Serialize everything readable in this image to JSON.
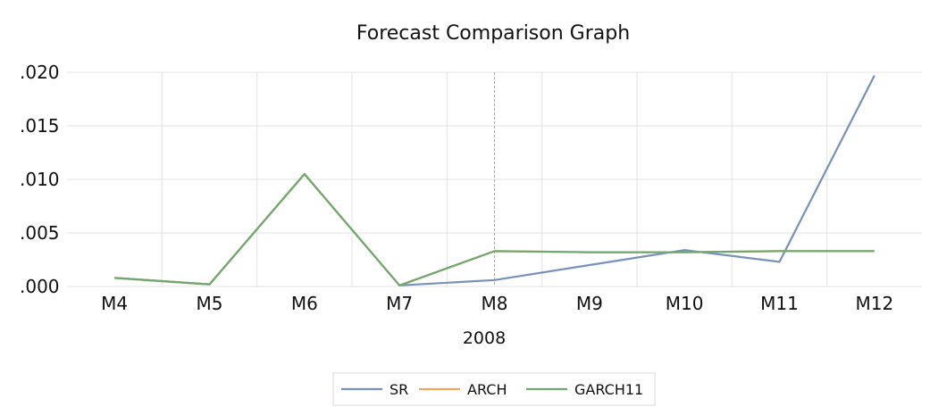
{
  "chart_data": {
    "type": "line",
    "title": "Forecast Comparison Graph",
    "xlabel": "2008",
    "ylabel": "",
    "categories": [
      "M4",
      "M5",
      "M6",
      "M7",
      "M8",
      "M9",
      "M10",
      "M11",
      "M12"
    ],
    "y_ticks": [
      ".000",
      ".005",
      ".010",
      ".015",
      ".020"
    ],
    "ylim": [
      0,
      0.02
    ],
    "grid": true,
    "legend_position": "bottom",
    "forecast_marker_category": "M8",
    "series": [
      {
        "name": "SR",
        "color": "#7891B8",
        "values": [
          0.0008,
          0.0002,
          0.0105,
          0.0001,
          0.0006,
          0.002,
          0.0034,
          0.0023,
          0.0197
        ]
      },
      {
        "name": "ARCH",
        "color": "#F2A85C",
        "values": [
          0.0008,
          0.0002,
          0.0105,
          0.0001,
          0.0033,
          0.0032,
          0.0032,
          0.0033,
          0.0033
        ]
      },
      {
        "name": "GARCH11",
        "color": "#70A870",
        "values": [
          0.0008,
          0.0002,
          0.0105,
          0.0001,
          0.0033,
          0.0032,
          0.0032,
          0.0033,
          0.0033
        ]
      }
    ]
  }
}
